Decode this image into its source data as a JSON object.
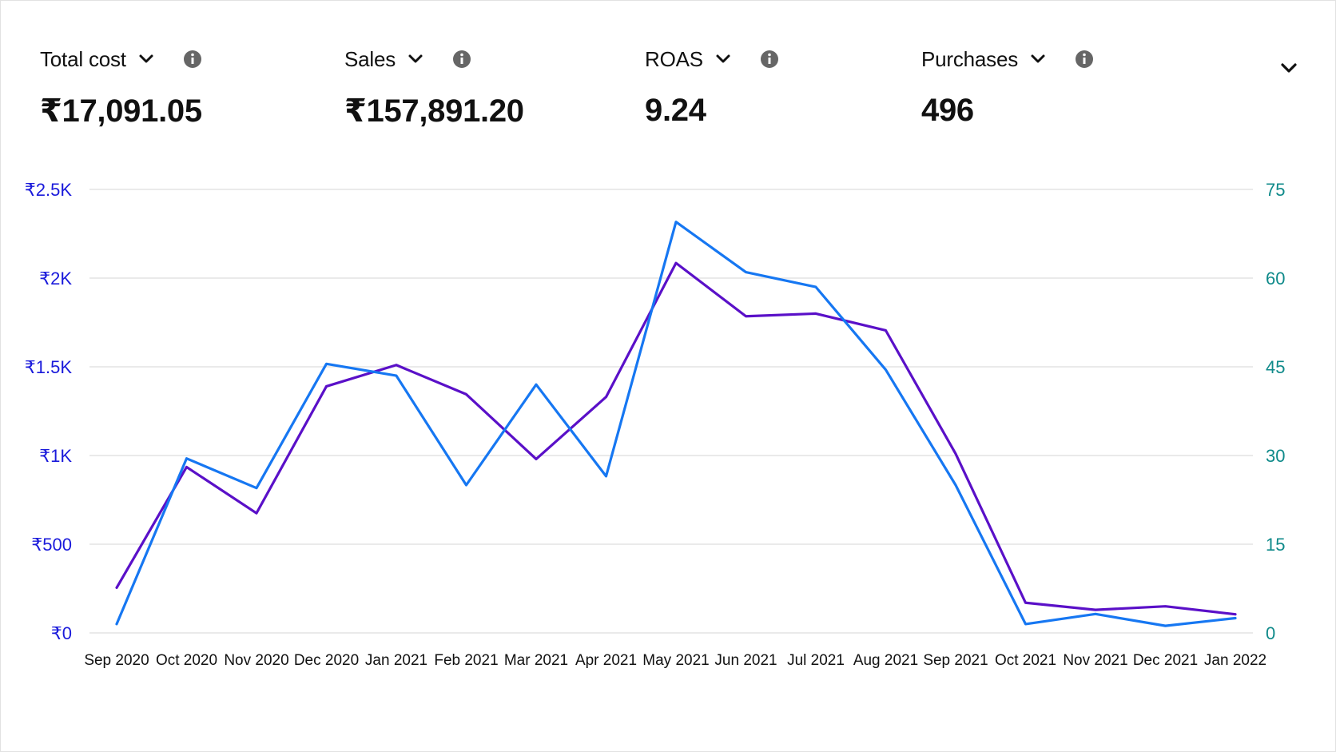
{
  "metrics": [
    {
      "label": "Total cost",
      "value": "₹17,091.05"
    },
    {
      "label": "Sales",
      "value": "₹157,891.20"
    },
    {
      "label": "ROAS",
      "value": "9.24"
    },
    {
      "label": "Purchases",
      "value": "496"
    }
  ],
  "colors": {
    "series_purple": "#5a10c8",
    "series_blue": "#1677f2",
    "left_axis_text": "#1a1adb",
    "right_axis_text": "#0f8a8a",
    "grid": "#e3e3e3"
  },
  "chart_data": {
    "type": "line",
    "categories": [
      "Sep 2020",
      "Oct 2020",
      "Nov 2020",
      "Dec 2020",
      "Jan 2021",
      "Feb 2021",
      "Mar 2021",
      "Apr 2021",
      "May 2021",
      "Jun 2021",
      "Jul 2021",
      "Aug 2021",
      "Sep 2021",
      "Oct 2021",
      "Nov 2021",
      "Dec 2021",
      "Jan 2022"
    ],
    "left_axis": {
      "ticks": [
        "₹0",
        "₹500",
        "₹1K",
        "₹1.5K",
        "₹2K",
        "₹2.5K"
      ],
      "ylim": [
        0,
        2500
      ]
    },
    "right_axis": {
      "ticks": [
        "0",
        "15",
        "30",
        "45",
        "60",
        "75"
      ],
      "ylim": [
        0,
        75
      ]
    },
    "series": [
      {
        "axis": "left",
        "color": "#5a10c8",
        "values": [
          255,
          935,
          675,
          1390,
          1510,
          1345,
          980,
          1330,
          2085,
          1785,
          1800,
          1705,
          1010,
          170,
          130,
          150,
          105
        ]
      },
      {
        "axis": "right",
        "color": "#1677f2",
        "values": [
          1.5,
          29.5,
          24.5,
          45.5,
          43.5,
          25,
          42,
          26.5,
          69.5,
          61,
          58.5,
          44.5,
          25,
          1.5,
          3.2,
          1.2,
          2.5
        ]
      }
    ],
    "grid": true
  }
}
